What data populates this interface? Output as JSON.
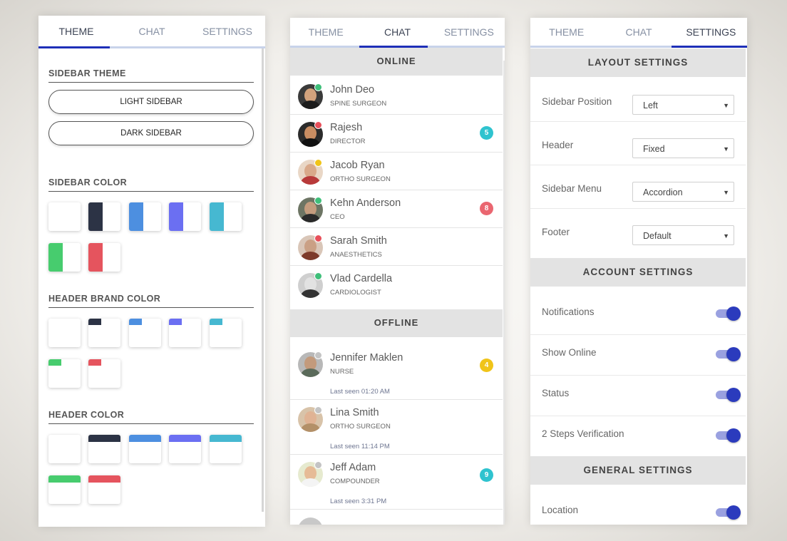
{
  "panels": {
    "theme": {
      "tabs": [
        "THEME",
        "CHAT",
        "SETTINGS"
      ],
      "sidebar_theme_title": "SIDEBAR THEME",
      "light_sidebar": "LIGHT SIDEBAR",
      "dark_sidebar": "DARK SIDEBAR",
      "sidebar_color_title": "SIDEBAR COLOR",
      "header_brand_color_title": "HEADER BRAND COLOR",
      "header_color_title": "HEADER COLOR"
    },
    "chat": {
      "tabs": [
        "THEME",
        "CHAT",
        "SETTINGS"
      ],
      "online_title": "ONLINE",
      "offline_title": "OFFLINE",
      "online": [
        {
          "name": "John Deo",
          "role": "SPINE SURGEON",
          "status": "#3fbf7a",
          "badge": "",
          "badge_color": ""
        },
        {
          "name": "Rajesh",
          "role": "DIRECTOR",
          "status": "#e8505b",
          "badge": "5",
          "badge_color": "#2fc3cf"
        },
        {
          "name": "Jacob Ryan",
          "role": "ORTHO SURGEON",
          "status": "#f0c419",
          "badge": "",
          "badge_color": ""
        },
        {
          "name": "Kehn Anderson",
          "role": "CEO",
          "status": "#3fbf7a",
          "badge": "8",
          "badge_color": "#ea6670"
        },
        {
          "name": "Sarah Smith",
          "role": "ANAESTHETICS",
          "status": "#e8505b",
          "badge": "",
          "badge_color": ""
        },
        {
          "name": "Vlad Cardella",
          "role": "CARDIOLOGIST",
          "status": "#3fbf7a",
          "badge": "",
          "badge_color": ""
        }
      ],
      "offline": [
        {
          "name": "Jennifer Maklen",
          "role": "NURSE",
          "seen": "Last seen 01:20 AM",
          "badge": "4",
          "badge_color": "#f0c419"
        },
        {
          "name": "Lina Smith",
          "role": "ORTHO SURGEON",
          "seen": "Last seen 11:14 PM",
          "badge": "",
          "badge_color": ""
        },
        {
          "name": "Jeff Adam",
          "role": "COMPOUNDER",
          "seen": "Last seen 3:31 PM",
          "badge": "9",
          "badge_color": "#2fc3cf"
        }
      ]
    },
    "settings": {
      "tabs": [
        "THEME",
        "CHAT",
        "SETTINGS"
      ],
      "layout_title": "LAYOUT SETTINGS",
      "account_title": "ACCOUNT SETTINGS",
      "general_title": "GENERAL SETTINGS",
      "layout": [
        {
          "label": "Sidebar Position",
          "value": "Left"
        },
        {
          "label": "Header",
          "value": "Fixed"
        },
        {
          "label": "Sidebar Menu",
          "value": "Accordion"
        },
        {
          "label": "Footer",
          "value": "Default"
        }
      ],
      "account": [
        {
          "label": "Notifications",
          "on": true
        },
        {
          "label": "Show Online",
          "on": true
        },
        {
          "label": "Status",
          "on": true
        },
        {
          "label": "2 Steps Verification",
          "on": true
        }
      ],
      "general": [
        {
          "label": "Location",
          "on": true
        }
      ]
    }
  },
  "colors": {
    "accent": "#1e2fb8",
    "swatches": [
      "#ffffff",
      "#2c3345",
      "#4d8fe0",
      "#6b6ff2",
      "#46b8d1",
      "#47cc6e",
      "#e5545e"
    ]
  }
}
